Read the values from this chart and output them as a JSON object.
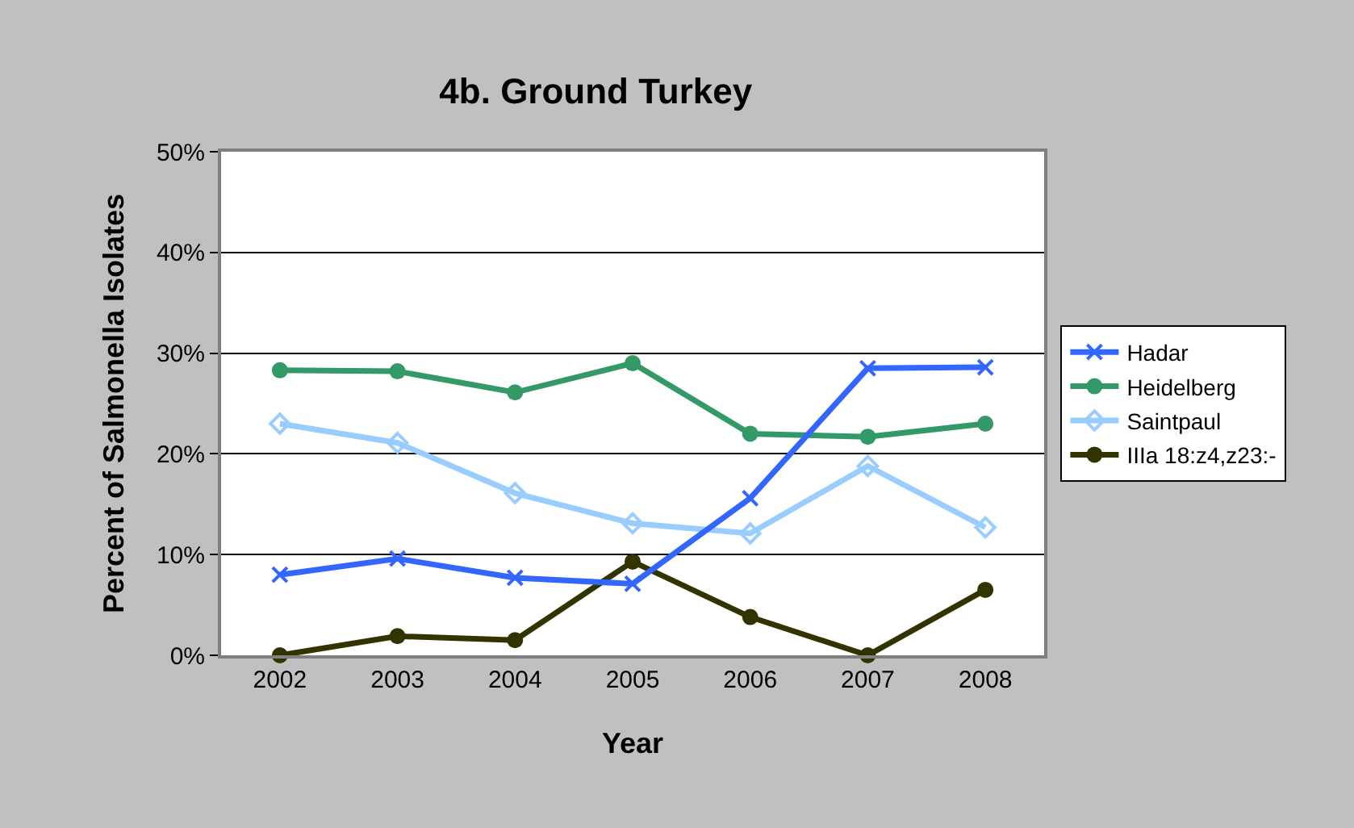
{
  "chart_data": {
    "type": "line",
    "title": "4b. Ground Turkey",
    "xlabel": "Year",
    "ylabel": "Percent of Salmonella Isolates",
    "categories": [
      "2002",
      "2003",
      "2004",
      "2005",
      "2006",
      "2007",
      "2008"
    ],
    "series": [
      {
        "name": "Hadar",
        "color": "#3366ff",
        "marker": "cross",
        "values": [
          8.0,
          9.6,
          7.7,
          7.1,
          15.6,
          28.5,
          28.6
        ]
      },
      {
        "name": "Heidelberg",
        "color": "#339966",
        "marker": "circle",
        "values": [
          28.3,
          28.2,
          26.1,
          29.0,
          22.0,
          21.7,
          23.0
        ]
      },
      {
        "name": "Saintpaul",
        "color": "#99ccff",
        "marker": "diamond",
        "values": [
          23.0,
          21.1,
          16.1,
          13.1,
          12.1,
          18.8,
          12.7
        ]
      },
      {
        "name": "IIIa 18:z4,z23:-",
        "color": "#333300",
        "marker": "circle",
        "values": [
          0,
          1.9,
          1.5,
          9.3,
          3.8,
          0,
          6.5
        ]
      }
    ],
    "ylim": [
      0,
      50
    ],
    "yticks": [
      {
        "value": 0,
        "label": "0%"
      },
      {
        "value": 10,
        "label": "10%"
      },
      {
        "value": 20,
        "label": "20%"
      },
      {
        "value": 30,
        "label": "30%"
      },
      {
        "value": 40,
        "label": "40%"
      },
      {
        "value": 50,
        "label": "50%"
      }
    ],
    "grid": "y",
    "legend": "right"
  }
}
